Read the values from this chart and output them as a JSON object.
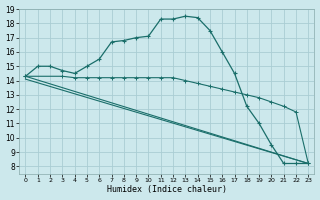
{
  "xlabel": "Humidex (Indice chaleur)",
  "xlim": [
    -0.5,
    23.5
  ],
  "ylim": [
    7.5,
    19.0
  ],
  "xticks": [
    0,
    1,
    2,
    3,
    4,
    5,
    6,
    7,
    8,
    9,
    10,
    11,
    12,
    13,
    14,
    15,
    16,
    17,
    18,
    19,
    20,
    21,
    22,
    23
  ],
  "yticks": [
    8,
    9,
    10,
    11,
    12,
    13,
    14,
    15,
    16,
    17,
    18,
    19
  ],
  "background_color": "#cce8ec",
  "grid_color": "#aacdd4",
  "line_color": "#1a6e6a",
  "series": [
    {
      "x": [
        0,
        1,
        2,
        3,
        4,
        5,
        6,
        7,
        8,
        9,
        10,
        11,
        12,
        13,
        14,
        15,
        16,
        17,
        18,
        19,
        20,
        21,
        22,
        23
      ],
      "y": [
        14.3,
        15.0,
        15.0,
        14.7,
        14.5,
        15.0,
        15.5,
        16.7,
        16.8,
        17.0,
        17.1,
        18.3,
        18.3,
        18.5,
        18.4,
        17.5,
        16.0,
        14.5,
        12.2,
        11.0,
        9.5,
        8.2,
        8.2,
        8.2
      ]
    },
    {
      "x": [
        0,
        3,
        4,
        5,
        6,
        7,
        8,
        9,
        10,
        11,
        12,
        13,
        14,
        15,
        16,
        17,
        18,
        19,
        20,
        21,
        22,
        23
      ],
      "y": [
        14.3,
        14.3,
        14.2,
        14.2,
        14.2,
        14.2,
        14.2,
        14.2,
        14.2,
        14.2,
        14.2,
        14.0,
        13.8,
        13.6,
        13.4,
        13.2,
        13.0,
        12.8,
        12.5,
        12.2,
        11.8,
        8.2
      ]
    },
    {
      "x": [
        0,
        23
      ],
      "y": [
        14.3,
        8.2
      ]
    },
    {
      "x": [
        0,
        23
      ],
      "y": [
        14.1,
        8.2
      ]
    }
  ]
}
